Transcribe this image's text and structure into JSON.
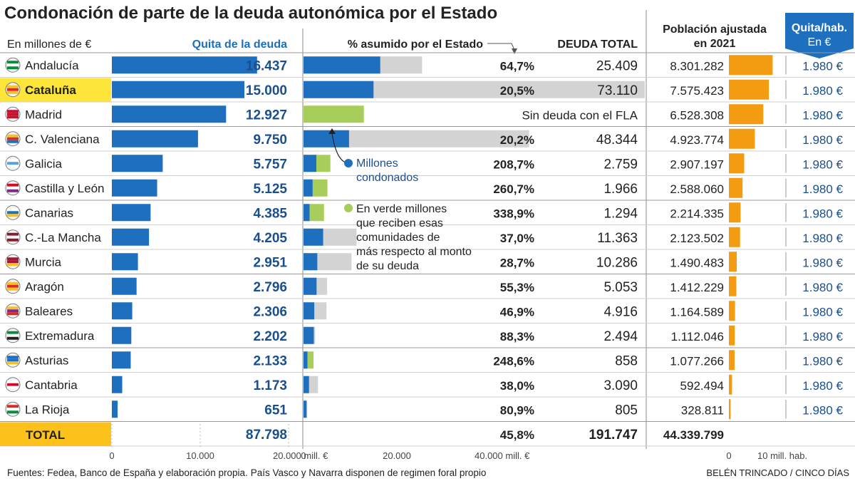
{
  "title": "Condonación de parte de la deuda autonómica por el Estado",
  "headers": {
    "unit": "En millones de €",
    "quita": "Quita de la deuda",
    "pct": "% asumido por el Estado",
    "deuda": "DEUDA TOTAL",
    "pob_line1": "Población ajustada",
    "pob_line2": "en 2021",
    "qh_line1": "Quita/hab.",
    "qh_line2": "En €"
  },
  "colors": {
    "blue": "#1f6fbf",
    "text_blue": "#1a4f8f",
    "gray": "#d3d3d3",
    "green": "#a7cd5b",
    "orange": "#f39c12",
    "highlight": "#fde53a",
    "total": "#fcc21b",
    "tab": "#1f6fbf"
  },
  "rows": [
    {
      "region": "Andalucía",
      "quita": "16.437",
      "pct": "64,7%",
      "deuda": "25.409",
      "poblacion": "8.301.282",
      "quita_hab": "1.980 €",
      "flag": "andalucia-flag"
    },
    {
      "region": "Cataluña",
      "quita": "15.000",
      "pct": "20,5%",
      "deuda": "73.110",
      "poblacion": "7.575.423",
      "quita_hab": "1.980 €",
      "flag": "cataluna-flag"
    },
    {
      "region": "Madrid",
      "quita": "12.927",
      "pct": "",
      "deuda": "Sin deuda con el FLA",
      "poblacion": "6.528.308",
      "quita_hab": "1.980 €",
      "flag": "madrid-flag"
    },
    {
      "region": "C. Valenciana",
      "quita": "9.750",
      "pct": "20,2%",
      "deuda": "48.344",
      "poblacion": "4.923.774",
      "quita_hab": "1.980 €",
      "flag": "valenciana-flag"
    },
    {
      "region": "Galicia",
      "quita": "5.757",
      "pct": "208,7%",
      "deuda": "2.759",
      "poblacion": "2.907.197",
      "quita_hab": "1.980 €",
      "flag": "galicia-flag"
    },
    {
      "region": "Castilla y León",
      "quita": "5.125",
      "pct": "260,7%",
      "deuda": "1.966",
      "poblacion": "2.588.060",
      "quita_hab": "1.980 €",
      "flag": "castilla-leon-flag"
    },
    {
      "region": "Canarias",
      "quita": "4.385",
      "pct": "338,9%",
      "deuda": "1.294",
      "poblacion": "2.214.335",
      "quita_hab": "1.980 €",
      "flag": "canarias-flag"
    },
    {
      "region": "C.-La Mancha",
      "quita": "4.205",
      "pct": "37,0%",
      "deuda": "11.363",
      "poblacion": "2.123.502",
      "quita_hab": "1.980 €",
      "flag": "la-mancha-flag"
    },
    {
      "region": "Murcia",
      "quita": "2.951",
      "pct": "28,7%",
      "deuda": "10.286",
      "poblacion": "1.490.483",
      "quita_hab": "1.980 €",
      "flag": "murcia-flag"
    },
    {
      "region": "Aragón",
      "quita": "2.796",
      "pct": "55,3%",
      "deuda": "5.053",
      "poblacion": "1.412.229",
      "quita_hab": "1.980 €",
      "flag": "aragon-flag"
    },
    {
      "region": "Baleares",
      "quita": "2.306",
      "pct": "46,9%",
      "deuda": "4.916",
      "poblacion": "1.164.589",
      "quita_hab": "1.980 €",
      "flag": "baleares-flag"
    },
    {
      "region": "Extremadura",
      "quita": "2.202",
      "pct": "88,3%",
      "deuda": "2.494",
      "poblacion": "1.112.046",
      "quita_hab": "1.980 €",
      "flag": "extremadura-flag"
    },
    {
      "region": "Asturias",
      "quita": "2.133",
      "pct": "248,6%",
      "deuda": "858",
      "poblacion": "1.077.266",
      "quita_hab": "1.980 €",
      "flag": "asturias-flag"
    },
    {
      "region": "Cantabria",
      "quita": "1.173",
      "pct": "38,0%",
      "deuda": "3.090",
      "poblacion": "592.494",
      "quita_hab": "1.980 €",
      "flag": "cantabria-flag"
    },
    {
      "region": "La Rioja",
      "quita": "651",
      "pct": "80,9%",
      "deuda": "805",
      "poblacion": "328.811",
      "quita_hab": "1.980 €",
      "flag": "la-rioja-flag"
    }
  ],
  "total": {
    "label": "TOTAL",
    "quita": "87.798",
    "pct": "45,8%",
    "deuda": "191.747",
    "poblacion": "44.339.799"
  },
  "axes": {
    "quita_ticks": [
      "0",
      "10.000",
      "20.000 mill. €"
    ],
    "deuda_ticks": [
      "0",
      "20.000",
      "40.000 mill. €"
    ],
    "pob_ticks": [
      "0",
      "10 mill. hab."
    ]
  },
  "annotations": {
    "blue_note": [
      "Millones",
      "condonados"
    ],
    "green_note": [
      "En verde millones",
      "que reciben esas",
      "comunidades de",
      "más respecto al monto",
      "de su deuda"
    ]
  },
  "footer": {
    "sources_bold": "Fuentes: Fedea, Banco de España y elaboración propia.",
    "sources_rest": "País Vasco y Navarra disponen de regimen foral propio",
    "credit": "BELÉN TRINCADO / CINCO DÍAS"
  },
  "chart_data": {
    "type": "bar",
    "title": "Condonación de parte de la deuda autonómica por el Estado",
    "unit": "millones de €",
    "categories": [
      "Andalucía",
      "Cataluña",
      "Madrid",
      "C. Valenciana",
      "Galicia",
      "Castilla y León",
      "Canarias",
      "C.-La Mancha",
      "Murcia",
      "Aragón",
      "Baleares",
      "Extremadura",
      "Asturias",
      "Cantabria",
      "La Rioja"
    ],
    "series": [
      {
        "name": "Quita de la deuda",
        "values": [
          16437,
          15000,
          12927,
          9750,
          5757,
          5125,
          4385,
          4205,
          2951,
          2796,
          2306,
          2202,
          2133,
          1173,
          651
        ]
      },
      {
        "name": "Deuda total",
        "values": [
          25409,
          73110,
          0,
          48344,
          2759,
          1966,
          1294,
          11363,
          10286,
          5053,
          4916,
          2494,
          858,
          3090,
          805
        ]
      },
      {
        "name": "% asumido por el Estado",
        "values": [
          64.7,
          20.5,
          null,
          20.2,
          208.7,
          260.7,
          338.9,
          37.0,
          28.7,
          55.3,
          46.9,
          88.3,
          248.6,
          38.0,
          80.9
        ]
      },
      {
        "name": "Población ajustada 2021",
        "values": [
          8301282,
          7575423,
          6528308,
          4923774,
          2907197,
          2588060,
          2214335,
          2123502,
          1490483,
          1412229,
          1164589,
          1112046,
          1077266,
          592494,
          328811
        ]
      },
      {
        "name": "Quita/hab. (€)",
        "values": [
          1980,
          1980,
          1980,
          1980,
          1980,
          1980,
          1980,
          1980,
          1980,
          1980,
          1980,
          1980,
          1980,
          1980,
          1980
        ]
      }
    ],
    "totals": {
      "quita": 87798,
      "deuda": 191747,
      "pct": 45.8,
      "poblacion": 44339799
    },
    "xlim_quita": [
      0,
      20000
    ],
    "xlim_deuda": [
      0,
      40000
    ],
    "xlim_poblacion": [
      0,
      10000000
    ]
  }
}
